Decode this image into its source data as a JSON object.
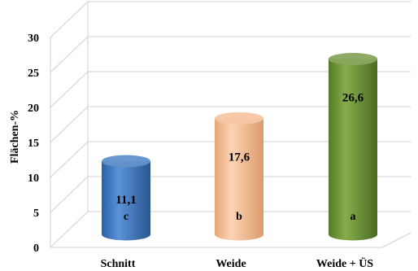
{
  "chart_data": {
    "type": "bar",
    "style": "3d-cylinder",
    "ylabel": "Flächen-%",
    "xlabel": "",
    "ylim": [
      0,
      30
    ],
    "yticks": [
      0,
      5,
      10,
      15,
      20,
      25,
      30
    ],
    "grid": true,
    "categories": [
      "Schnitt",
      "Weide",
      "Weide + ÜS"
    ],
    "values": [
      11.1,
      17.6,
      26.6
    ],
    "value_labels": [
      "11,1",
      "17,6",
      "26,6"
    ],
    "significance_letters": [
      "c",
      "b",
      "a"
    ],
    "colors": [
      "#3f78c0",
      "#f6b98f",
      "#6e9438"
    ]
  }
}
